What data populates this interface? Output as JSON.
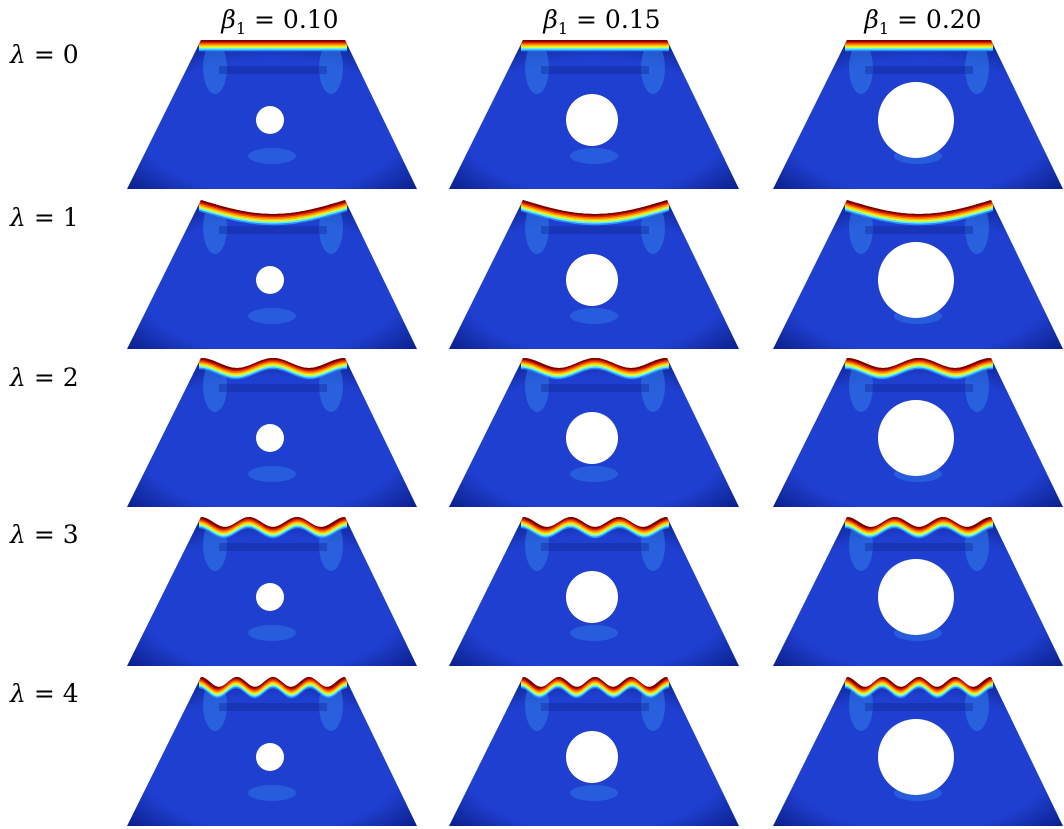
{
  "columns": [
    {
      "symbol": "β",
      "subscript": "1",
      "value": "= 0.10",
      "hole_ratio": 0.1
    },
    {
      "symbol": "β",
      "subscript": "1",
      "value": "= 0.15",
      "hole_ratio": 0.15
    },
    {
      "symbol": "β",
      "subscript": "1",
      "value": "= 0.20",
      "hole_ratio": 0.2
    }
  ],
  "rows": [
    {
      "symbol": "λ",
      "value": "= 0",
      "waves": 0
    },
    {
      "symbol": "λ",
      "value": "= 1",
      "waves": 1
    },
    {
      "symbol": "λ",
      "value": "= 2",
      "waves": 2
    },
    {
      "symbol": "λ",
      "value": "= 3",
      "waves": 3
    },
    {
      "symbol": "λ",
      "value": "= 4",
      "waves": 4
    }
  ],
  "colors": {
    "field_base": "#1f3fd0",
    "field_light": "#2f7ce8",
    "field_dark": "#0b1f8a",
    "hot_band": [
      "#7a0000",
      "#d81c00",
      "#ff6a00",
      "#ffc400",
      "#d6ff3a",
      "#5ef0ff",
      "#2a8cff"
    ],
    "hole": "#ffffff"
  }
}
